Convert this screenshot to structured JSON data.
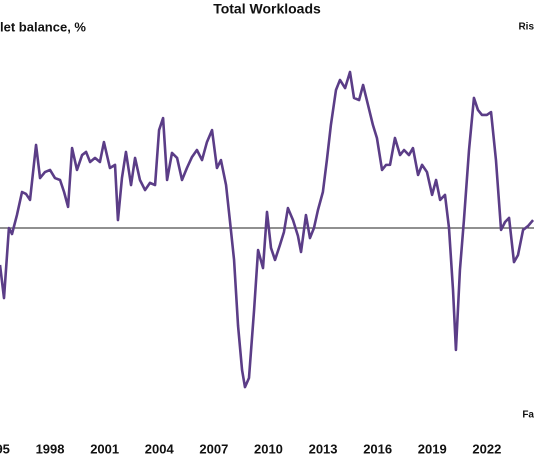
{
  "chart_data": {
    "type": "line",
    "title": "Total Workloads",
    "y_label": "let balance, %",
    "annotations": [
      "Ris",
      "Fa"
    ],
    "xlim": [
      1995.25,
      2024.59
    ],
    "ylim": [
      -90,
      90
    ],
    "xticks": [
      {
        "value": 1995,
        "label": "95"
      },
      1998,
      2001,
      2004,
      2007,
      2010,
      2013,
      2016,
      2019,
      2022
    ],
    "reference_line": 0,
    "series": [
      {
        "color": "#5b3d87",
        "x": [
          1995.25,
          1995.47,
          1995.74,
          1995.91,
          1996.18,
          1996.46,
          1996.68,
          1996.9,
          1997.23,
          1997.45,
          1997.72,
          1998.0,
          1998.27,
          1998.55,
          1998.77,
          1998.99,
          1999.21,
          1999.48,
          1999.76,
          1999.98,
          2000.2,
          2000.47,
          2000.74,
          2000.96,
          2001.29,
          2001.57,
          2001.73,
          2001.95,
          2002.17,
          2002.45,
          2002.67,
          2002.94,
          2003.22,
          2003.49,
          2003.77,
          2003.99,
          2004.21,
          2004.43,
          2004.7,
          2004.98,
          2005.25,
          2005.52,
          2005.8,
          2006.07,
          2006.35,
          2006.62,
          2006.9,
          2007.17,
          2007.39,
          2007.67,
          2007.89,
          2008.11,
          2008.33,
          2008.55,
          2008.71,
          2008.93,
          2009.21,
          2009.43,
          2009.7,
          2009.92,
          2010.14,
          2010.36,
          2010.63,
          2010.85,
          2011.07,
          2011.35,
          2011.62,
          2011.79,
          2012.06,
          2012.28,
          2012.5,
          2012.72,
          2012.99,
          2013.21,
          2013.43,
          2013.71,
          2013.93,
          2014.21,
          2014.48,
          2014.7,
          2014.98,
          2015.2,
          2015.47,
          2015.74,
          2015.96,
          2016.24,
          2016.46,
          2016.68,
          2016.95,
          2017.23,
          2017.45,
          2017.72,
          2017.94,
          2018.22,
          2018.44,
          2018.71,
          2018.99,
          2019.21,
          2019.43,
          2019.7,
          2019.92,
          2020.14,
          2020.3,
          2020.52,
          2020.74,
          2021.02,
          2021.29,
          2021.51,
          2021.73,
          2022.0,
          2022.23,
          2022.5,
          2022.78,
          2023.0,
          2023.22,
          2023.49,
          2023.71,
          2023.99,
          2024.26,
          2024.54
        ],
        "values": [
          -15.4,
          -29.2,
          0,
          -2.5,
          5.4,
          15,
          14.2,
          11.7,
          34.6,
          20.8,
          23.3,
          24.2,
          20.8,
          20,
          15,
          8.8,
          33.3,
          24.2,
          30.4,
          31.7,
          27.5,
          29.2,
          27.5,
          35.8,
          25,
          26.3,
          3.3,
          20.8,
          31.7,
          17.9,
          29.2,
          20,
          15.8,
          18.8,
          17.9,
          40.8,
          45.8,
          20,
          31.3,
          29.2,
          20,
          25,
          29.6,
          32.5,
          28.3,
          35.8,
          40.8,
          25,
          28.3,
          17.9,
          2.5,
          -13.3,
          -40.8,
          -59.2,
          -66.3,
          -62.5,
          -34.2,
          -9.2,
          -16.7,
          6.7,
          -8.3,
          -13.3,
          -7.1,
          -1.7,
          8.3,
          3.3,
          -3.3,
          -10,
          5.4,
          -4.2,
          0,
          7.5,
          15,
          28.3,
          42.9,
          57.5,
          61.7,
          58.3,
          65,
          54.2,
          53.3,
          59.6,
          51.3,
          42.9,
          37.5,
          24.2,
          26.3,
          26.3,
          37.5,
          30.4,
          32.5,
          30.4,
          33.3,
          22.1,
          26.3,
          23.3,
          13.8,
          20,
          11.7,
          13.8,
          0,
          -25.8,
          -50.8,
          -17.5,
          3.3,
          32.5,
          54.2,
          49.2,
          47.1,
          47.1,
          48.3,
          28.3,
          -0.8,
          2.5,
          4.2,
          -14.2,
          -11.3,
          -0.8,
          0.8,
          3.3
        ]
      }
    ]
  }
}
